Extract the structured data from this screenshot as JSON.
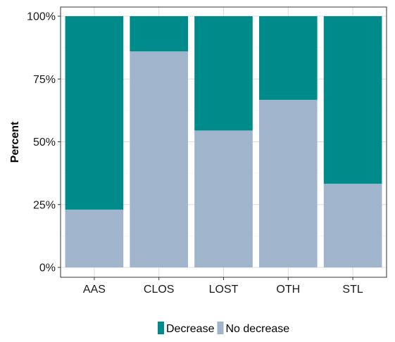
{
  "chart_data": {
    "type": "bar",
    "stacked": true,
    "categories": [
      "AAS",
      "CLOS",
      "LOST",
      "OTH",
      "STL"
    ],
    "series": [
      {
        "name": "No decrease",
        "values": [
          23,
          86,
          54.5,
          66.7,
          33.3
        ],
        "color": "#a0b4cb"
      },
      {
        "name": "Decrease",
        "values": [
          77,
          14,
          45.5,
          33.3,
          66.7
        ],
        "color": "#008b8b"
      }
    ],
    "title": "",
    "xlabel": "",
    "ylabel": "Percent",
    "ylim": [
      0,
      100
    ],
    "yticks": [
      0,
      25,
      50,
      75,
      100
    ],
    "ytick_labels": [
      "0%",
      "25%",
      "50%",
      "75%",
      "100%"
    ],
    "grid": true,
    "legend_position": "bottom",
    "legend_order": [
      "Decrease",
      "No decrease"
    ]
  }
}
